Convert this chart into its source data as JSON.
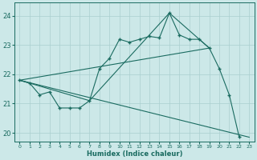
{
  "xlabel": "Humidex (Indice chaleur)",
  "background_color": "#cce8e8",
  "grid_color": "#aacfcf",
  "line_color": "#1a6b60",
  "xlim": [
    -0.5,
    23.5
  ],
  "ylim": [
    19.7,
    24.45
  ],
  "yticks": [
    20,
    21,
    22,
    23,
    24
  ],
  "xticks": [
    0,
    1,
    2,
    3,
    4,
    5,
    6,
    7,
    8,
    9,
    10,
    11,
    12,
    13,
    14,
    15,
    16,
    17,
    18,
    19,
    20,
    21,
    22,
    23
  ],
  "line1_x": [
    0,
    1,
    2,
    3,
    4,
    5,
    6,
    7,
    8,
    9,
    10,
    11,
    12,
    13,
    14,
    15,
    16,
    17,
    18,
    19,
    20,
    21,
    22
  ],
  "line1_y": [
    21.8,
    21.7,
    21.3,
    21.4,
    20.85,
    20.85,
    20.85,
    21.1,
    22.2,
    22.55,
    23.2,
    23.1,
    23.2,
    23.3,
    23.25,
    24.1,
    23.35,
    23.2,
    23.2,
    22.9,
    22.2,
    21.3,
    19.85
  ],
  "line2_x": [
    0,
    19
  ],
  "line2_y": [
    21.8,
    22.9
  ],
  "line3_x": [
    0,
    23
  ],
  "line3_y": [
    21.8,
    19.85
  ],
  "line4_x": [
    0,
    7,
    15,
    19
  ],
  "line4_y": [
    21.8,
    21.1,
    24.1,
    22.9
  ]
}
